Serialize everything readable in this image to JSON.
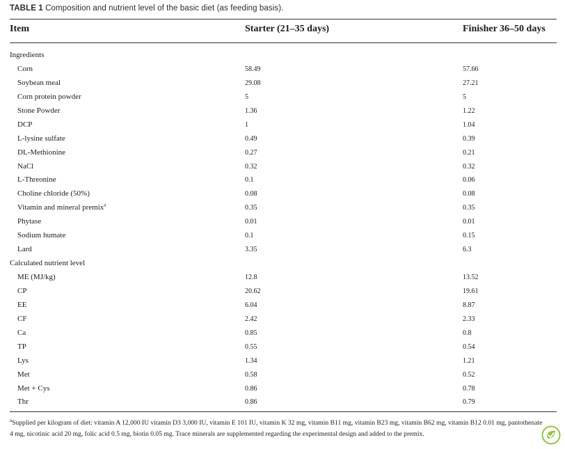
{
  "caption": {
    "label": "TABLE 1",
    "text": "Composition and nutrient level of the basic diet (as feeding basis)."
  },
  "headers": {
    "item": "Item",
    "starter": "Starter (21–35 days)",
    "finisher": "Finisher 36–50 days"
  },
  "rows": [
    {
      "item": "Ingredients",
      "section": true,
      "starter": "",
      "finisher": ""
    },
    {
      "item": "Corn",
      "starter": "58.49",
      "finisher": "57.66"
    },
    {
      "item": "Soybean meal",
      "starter": "29.08",
      "finisher": "27.21"
    },
    {
      "item": "Corn protein powder",
      "starter": "5",
      "finisher": "5"
    },
    {
      "item": "Stone Powder",
      "starter": "1.36",
      "finisher": "1.22"
    },
    {
      "item": "DCP",
      "starter": "1",
      "finisher": "1.04"
    },
    {
      "item": "L-lysine sulfate",
      "starter": "0.49",
      "finisher": "0.39"
    },
    {
      "item": "DL-Methionine",
      "starter": "0.27",
      "finisher": "0.21"
    },
    {
      "item": "NaCl",
      "starter": "0.32",
      "finisher": "0.32"
    },
    {
      "item": "L-Threonine",
      "starter": "0.1",
      "finisher": "0.06"
    },
    {
      "item": "Choline chloride (50%)",
      "starter": "0.08",
      "finisher": "0.08"
    },
    {
      "item": "Vitamin and mineral premix",
      "sup": "a",
      "starter": "0.35",
      "finisher": "0.35"
    },
    {
      "item": "Phytase",
      "starter": "0.01",
      "finisher": "0.01"
    },
    {
      "item": "Sodium humate",
      "starter": "0.1",
      "finisher": "0.15"
    },
    {
      "item": "Lard",
      "starter": "3.35",
      "finisher": "6.3"
    },
    {
      "item": "Calculated nutrient level",
      "section": true,
      "starter": "",
      "finisher": ""
    },
    {
      "item": "ME (MJ/kg)",
      "starter": "12.8",
      "finisher": "13.52"
    },
    {
      "item": "CP",
      "starter": "20.62",
      "finisher": "19.61"
    },
    {
      "item": "EE",
      "starter": "6.04",
      "finisher": "8.87"
    },
    {
      "item": "CF",
      "starter": "2.42",
      "finisher": "2.33"
    },
    {
      "item": "Ca",
      "starter": "0.85",
      "finisher": "0.8"
    },
    {
      "item": "TP",
      "starter": "0.55",
      "finisher": "0.54"
    },
    {
      "item": "Lys",
      "starter": "1.34",
      "finisher": "1.21"
    },
    {
      "item": "Met",
      "starter": "0.58",
      "finisher": "0.52"
    },
    {
      "item": "Met + Cys",
      "starter": "0.86",
      "finisher": "0.78"
    },
    {
      "item": "Thr",
      "starter": "0.86",
      "finisher": "0.79"
    }
  ],
  "footnote": {
    "marker": "a",
    "text": "Supplied per kilogram of diet: vitamin A 12,000 IU vitamin D3 3,000 IU, vitamin E 101 IU, vitamin K 32 mg, vitamin B11 mg, vitamin B23 mg, vitamin B62 mg, vitamin B12 0.01 mg, pantothenate 4 mg, nicotinic acid 20 mg, folic acid 0.5 mg, biotin 0.05 mg. Trace minerals are supplemented regarding the experimental design and added to the premix."
  },
  "logo": {
    "icon": "leaf-check-logo",
    "color": "#8cc63f"
  },
  "colors": {
    "text": "#1a1a1a",
    "rule": "#333333"
  }
}
